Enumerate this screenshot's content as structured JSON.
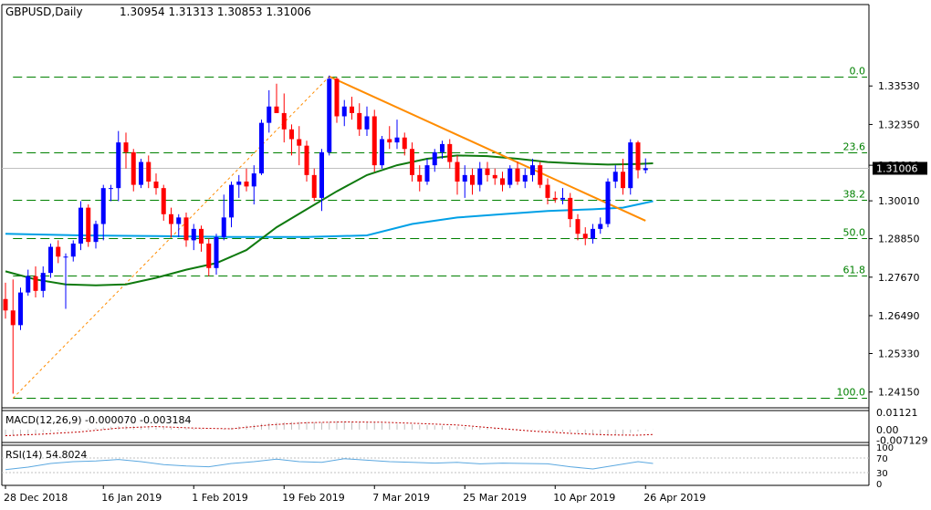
{
  "header": {
    "symbol": "GBPUSD,Daily",
    "ohlc": "1.30954 1.31313 1.30853 1.31006"
  },
  "colors": {
    "bull": "#0000ff",
    "bear": "#ff0000",
    "ema_slow": "#00a0e6",
    "ema_fast": "#0f7a0f",
    "fibo": "#008000",
    "trendline": "#ff8c00",
    "fibo_diagonal": "#ff8c00",
    "macd_signal": "#c00000",
    "rsi": "#5ba8e0",
    "price_box_bg": "#000000",
    "price_box_text": "#ffffff"
  },
  "chart_data": {
    "type": "candlestick",
    "title": "GBPUSD,Daily",
    "ylim": [
      1.23666,
      1.36025
    ],
    "ytick_labels": [
      "1.33530",
      "1.32350",
      "1.31100",
      "1.30010",
      "1.28850",
      "1.27670",
      "1.26490",
      "1.25330",
      "1.24150"
    ],
    "ytick_values": [
      1.3353,
      1.3235,
      1.311,
      1.3001,
      1.2885,
      1.2767,
      1.2649,
      1.2533,
      1.2415
    ],
    "x_labels": [
      {
        "label": "28 Dec 2018",
        "index": 0
      },
      {
        "label": "16 Jan 2019",
        "index": 13
      },
      {
        "label": "1 Feb 2019",
        "index": 25
      },
      {
        "label": "19 Feb 2019",
        "index": 37
      },
      {
        "label": "7 Mar 2019",
        "index": 49
      },
      {
        "label": "25 Mar 2019",
        "index": 61
      },
      {
        "label": "10 Apr 2019",
        "index": 73
      },
      {
        "label": "26 Apr 2019",
        "index": 85
      }
    ],
    "current_price": "1.31006",
    "current_price_value": 1.31006,
    "candles": [
      {
        "o": 1.27,
        "h": 1.275,
        "l": 1.264,
        "c": 1.2665
      },
      {
        "o": 1.2665,
        "h": 1.276,
        "l": 1.241,
        "c": 1.262
      },
      {
        "o": 1.262,
        "h": 1.2735,
        "l": 1.2605,
        "c": 1.272
      },
      {
        "o": 1.272,
        "h": 1.279,
        "l": 1.271,
        "c": 1.277
      },
      {
        "o": 1.277,
        "h": 1.28,
        "l": 1.2705,
        "c": 1.2725
      },
      {
        "o": 1.2725,
        "h": 1.28,
        "l": 1.2705,
        "c": 1.278
      },
      {
        "o": 1.278,
        "h": 1.287,
        "l": 1.2765,
        "c": 1.286
      },
      {
        "o": 1.286,
        "h": 1.288,
        "l": 1.281,
        "c": 1.283
      },
      {
        "o": 1.283,
        "h": 1.284,
        "l": 1.267,
        "c": 1.283
      },
      {
        "o": 1.283,
        "h": 1.288,
        "l": 1.2815,
        "c": 1.287
      },
      {
        "o": 1.287,
        "h": 1.3,
        "l": 1.285,
        "c": 1.298
      },
      {
        "o": 1.298,
        "h": 1.299,
        "l": 1.286,
        "c": 1.2875
      },
      {
        "o": 1.2875,
        "h": 1.294,
        "l": 1.2855,
        "c": 1.293
      },
      {
        "o": 1.293,
        "h": 1.305,
        "l": 1.288,
        "c": 1.304
      },
      {
        "o": 1.304,
        "h": 1.305,
        "l": 1.3,
        "c": 1.304
      },
      {
        "o": 1.304,
        "h": 1.3215,
        "l": 1.3,
        "c": 1.318
      },
      {
        "o": 1.318,
        "h": 1.321,
        "l": 1.31,
        "c": 1.315
      },
      {
        "o": 1.315,
        "h": 1.316,
        "l": 1.303,
        "c": 1.305
      },
      {
        "o": 1.305,
        "h": 1.313,
        "l": 1.304,
        "c": 1.312
      },
      {
        "o": 1.312,
        "h": 1.314,
        "l": 1.304,
        "c": 1.306
      },
      {
        "o": 1.306,
        "h": 1.3085,
        "l": 1.302,
        "c": 1.304
      },
      {
        "o": 1.304,
        "h": 1.305,
        "l": 1.294,
        "c": 1.296
      },
      {
        "o": 1.296,
        "h": 1.298,
        "l": 1.289,
        "c": 1.293
      },
      {
        "o": 1.293,
        "h": 1.296,
        "l": 1.289,
        "c": 1.295
      },
      {
        "o": 1.295,
        "h": 1.2965,
        "l": 1.286,
        "c": 1.288
      },
      {
        "o": 1.288,
        "h": 1.293,
        "l": 1.285,
        "c": 1.2915
      },
      {
        "o": 1.2915,
        "h": 1.2925,
        "l": 1.2845,
        "c": 1.287
      },
      {
        "o": 1.287,
        "h": 1.2885,
        "l": 1.277,
        "c": 1.2795
      },
      {
        "o": 1.2795,
        "h": 1.29,
        "l": 1.2775,
        "c": 1.289
      },
      {
        "o": 1.289,
        "h": 1.302,
        "l": 1.288,
        "c": 1.295
      },
      {
        "o": 1.295,
        "h": 1.306,
        "l": 1.292,
        "c": 1.305
      },
      {
        "o": 1.305,
        "h": 1.308,
        "l": 1.301,
        "c": 1.306
      },
      {
        "o": 1.306,
        "h": 1.31,
        "l": 1.303,
        "c": 1.3045
      },
      {
        "o": 1.3045,
        "h": 1.311,
        "l": 1.299,
        "c": 1.3085
      },
      {
        "o": 1.3085,
        "h": 1.325,
        "l": 1.308,
        "c": 1.324
      },
      {
        "o": 1.324,
        "h": 1.334,
        "l": 1.321,
        "c": 1.329
      },
      {
        "o": 1.329,
        "h": 1.336,
        "l": 1.327,
        "c": 1.327
      },
      {
        "o": 1.327,
        "h": 1.333,
        "l": 1.318,
        "c": 1.322
      },
      {
        "o": 1.322,
        "h": 1.3235,
        "l": 1.314,
        "c": 1.319
      },
      {
        "o": 1.319,
        "h": 1.323,
        "l": 1.311,
        "c": 1.317
      },
      {
        "o": 1.317,
        "h": 1.3185,
        "l": 1.306,
        "c": 1.308
      },
      {
        "o": 1.308,
        "h": 1.31,
        "l": 1.3,
        "c": 1.301
      },
      {
        "o": 1.301,
        "h": 1.316,
        "l": 1.297,
        "c": 1.315
      },
      {
        "o": 1.315,
        "h": 1.3385,
        "l": 1.314,
        "c": 1.3375
      },
      {
        "o": 1.3375,
        "h": 1.338,
        "l": 1.324,
        "c": 1.326
      },
      {
        "o": 1.326,
        "h": 1.331,
        "l": 1.323,
        "c": 1.329
      },
      {
        "o": 1.329,
        "h": 1.332,
        "l": 1.325,
        "c": 1.327
      },
      {
        "o": 1.327,
        "h": 1.33,
        "l": 1.32,
        "c": 1.322
      },
      {
        "o": 1.322,
        "h": 1.329,
        "l": 1.32,
        "c": 1.326
      },
      {
        "o": 1.326,
        "h": 1.328,
        "l": 1.309,
        "c": 1.311
      },
      {
        "o": 1.311,
        "h": 1.32,
        "l": 1.31,
        "c": 1.319
      },
      {
        "o": 1.319,
        "h": 1.323,
        "l": 1.316,
        "c": 1.318
      },
      {
        "o": 1.318,
        "h": 1.325,
        "l": 1.316,
        "c": 1.3195
      },
      {
        "o": 1.3195,
        "h": 1.321,
        "l": 1.314,
        "c": 1.316
      },
      {
        "o": 1.316,
        "h": 1.318,
        "l": 1.306,
        "c": 1.308
      },
      {
        "o": 1.308,
        "h": 1.311,
        "l": 1.303,
        "c": 1.306
      },
      {
        "o": 1.306,
        "h": 1.313,
        "l": 1.305,
        "c": 1.311
      },
      {
        "o": 1.311,
        "h": 1.316,
        "l": 1.309,
        "c": 1.315
      },
      {
        "o": 1.315,
        "h": 1.3185,
        "l": 1.313,
        "c": 1.3175
      },
      {
        "o": 1.3175,
        "h": 1.319,
        "l": 1.31,
        "c": 1.312
      },
      {
        "o": 1.312,
        "h": 1.314,
        "l": 1.302,
        "c": 1.306
      },
      {
        "o": 1.306,
        "h": 1.311,
        "l": 1.301,
        "c": 1.308
      },
      {
        "o": 1.308,
        "h": 1.31,
        "l": 1.302,
        "c": 1.305
      },
      {
        "o": 1.305,
        "h": 1.312,
        "l": 1.303,
        "c": 1.31
      },
      {
        "o": 1.31,
        "h": 1.312,
        "l": 1.306,
        "c": 1.308
      },
      {
        "o": 1.308,
        "h": 1.31,
        "l": 1.305,
        "c": 1.307
      },
      {
        "o": 1.307,
        "h": 1.309,
        "l": 1.303,
        "c": 1.305
      },
      {
        "o": 1.305,
        "h": 1.311,
        "l": 1.304,
        "c": 1.31
      },
      {
        "o": 1.31,
        "h": 1.312,
        "l": 1.305,
        "c": 1.306
      },
      {
        "o": 1.306,
        "h": 1.31,
        "l": 1.304,
        "c": 1.308
      },
      {
        "o": 1.308,
        "h": 1.313,
        "l": 1.306,
        "c": 1.311
      },
      {
        "o": 1.311,
        "h": 1.312,
        "l": 1.304,
        "c": 1.305
      },
      {
        "o": 1.305,
        "h": 1.307,
        "l": 1.299,
        "c": 1.301
      },
      {
        "o": 1.301,
        "h": 1.303,
        "l": 1.2995,
        "c": 1.3005
      },
      {
        "o": 1.3005,
        "h": 1.304,
        "l": 1.299,
        "c": 1.301
      },
      {
        "o": 1.301,
        "h": 1.3025,
        "l": 1.292,
        "c": 1.2945
      },
      {
        "o": 1.2945,
        "h": 1.296,
        "l": 1.288,
        "c": 1.29
      },
      {
        "o": 1.29,
        "h": 1.292,
        "l": 1.2865,
        "c": 1.2885
      },
      {
        "o": 1.2885,
        "h": 1.293,
        "l": 1.287,
        "c": 1.2915
      },
      {
        "o": 1.2915,
        "h": 1.295,
        "l": 1.29,
        "c": 1.293
      },
      {
        "o": 1.293,
        "h": 1.307,
        "l": 1.292,
        "c": 1.306
      },
      {
        "o": 1.306,
        "h": 1.311,
        "l": 1.304,
        "c": 1.309
      },
      {
        "o": 1.309,
        "h": 1.313,
        "l": 1.302,
        "c": 1.304
      },
      {
        "o": 1.304,
        "h": 1.319,
        "l": 1.302,
        "c": 1.318
      },
      {
        "o": 1.318,
        "h": 1.3185,
        "l": 1.307,
        "c": 1.3095
      },
      {
        "o": 1.3095,
        "h": 1.3131,
        "l": 1.3085,
        "c": 1.3101
      }
    ],
    "ema_fast": [
      [
        0,
        1.2785
      ],
      [
        4,
        1.276
      ],
      [
        8,
        1.2745
      ],
      [
        12,
        1.2742
      ],
      [
        16,
        1.2745
      ],
      [
        20,
        1.2765
      ],
      [
        24,
        1.279
      ],
      [
        28,
        1.281
      ],
      [
        32,
        1.285
      ],
      [
        36,
        1.292
      ],
      [
        40,
        1.2975
      ],
      [
        44,
        1.303
      ],
      [
        48,
        1.308
      ],
      [
        52,
        1.311
      ],
      [
        56,
        1.313
      ],
      [
        60,
        1.314
      ],
      [
        64,
        1.3138
      ],
      [
        68,
        1.313
      ],
      [
        72,
        1.312
      ],
      [
        76,
        1.3115
      ],
      [
        80,
        1.3112
      ],
      [
        84,
        1.3114
      ],
      [
        86,
        1.3116
      ]
    ],
    "ema_slow": [
      [
        0,
        1.29
      ],
      [
        10,
        1.2895
      ],
      [
        20,
        1.2893
      ],
      [
        30,
        1.289
      ],
      [
        40,
        1.289
      ],
      [
        48,
        1.2895
      ],
      [
        54,
        1.293
      ],
      [
        60,
        1.295
      ],
      [
        66,
        1.296
      ],
      [
        72,
        1.297
      ],
      [
        78,
        1.2975
      ],
      [
        82,
        1.298
      ],
      [
        86,
        1.3
      ]
    ],
    "fibo_levels": [
      {
        "label": "0.0",
        "value": 1.3382
      },
      {
        "label": "23.6",
        "value": 1.3149
      },
      {
        "label": "38.2",
        "value": 1.3005
      },
      {
        "label": "50.0",
        "value": 1.2888
      },
      {
        "label": "61.8",
        "value": 1.2771
      },
      {
        "label": "100.0",
        "value": 1.2396
      }
    ],
    "fibo_price_low": 1.2396,
    "fibo_price_high": 1.3382,
    "fibo_start_index": 1,
    "fibo_end_index": 43,
    "trendline": {
      "x1": 43,
      "y1": 1.3382,
      "x2": 85,
      "y2": 1.294
    },
    "macd": {
      "label": "MACD(12,26,9) -0.000070 -0.003184",
      "tick_labels": [
        "0.01121",
        "0.00",
        "-0.007129"
      ],
      "ylim": [
        -0.0085,
        0.0125
      ],
      "signal": [
        [
          0,
          -0.004
        ],
        [
          5,
          -0.003
        ],
        [
          10,
          -0.0015
        ],
        [
          15,
          0.001
        ],
        [
          20,
          0.002
        ],
        [
          25,
          0.001
        ],
        [
          30,
          0.0005
        ],
        [
          35,
          0.003
        ],
        [
          40,
          0.0045
        ],
        [
          45,
          0.005
        ],
        [
          50,
          0.0048
        ],
        [
          55,
          0.004
        ],
        [
          60,
          0.003
        ],
        [
          65,
          0.001
        ],
        [
          70,
          -0.001
        ],
        [
          75,
          -0.0025
        ],
        [
          80,
          -0.0035
        ],
        [
          84,
          -0.0037
        ],
        [
          86,
          -0.0032
        ]
      ],
      "hist": [
        -0.0045,
        -0.004,
        -0.0035,
        -0.003,
        -0.0025,
        -0.002,
        -0.0015,
        -0.001,
        -0.0006,
        -0.0003,
        0.0002,
        0.0006,
        0.001,
        0.0015,
        0.0019,
        0.0022,
        0.0025,
        0.0024,
        0.0022,
        0.002,
        0.0018,
        0.0016,
        0.0012,
        0.0009,
        0.0007,
        0.0005,
        0.0003,
        0.0001,
        0.0,
        0.0005,
        0.0012,
        0.002,
        0.0026,
        0.0032,
        0.0038,
        0.0043,
        0.0046,
        0.0048,
        0.0049,
        0.005,
        0.005,
        0.0048,
        0.0047,
        0.005,
        0.0055,
        0.0055,
        0.0053,
        0.005,
        0.0048,
        0.0045,
        0.0043,
        0.004,
        0.0038,
        0.0036,
        0.0034,
        0.0031,
        0.0029,
        0.0027,
        0.0025,
        0.0023,
        0.002,
        0.0018,
        0.0016,
        0.0014,
        0.0012,
        0.001,
        0.0008,
        0.0005,
        0.0003,
        0.0,
        -0.0003,
        -0.0006,
        -0.0009,
        -0.0012,
        -0.0015,
        -0.0018,
        -0.0022,
        -0.0026,
        -0.003,
        -0.0034,
        -0.0036,
        -0.0035,
        -0.003,
        -0.0022,
        -0.0012,
        -0.0005,
        -0.0001
      ]
    },
    "rsi": {
      "label": "RSI(14) 54.8024",
      "tick_labels": [
        "100",
        "70",
        "30",
        "0"
      ],
      "values": [
        [
          0,
          38
        ],
        [
          3,
          45
        ],
        [
          6,
          55
        ],
        [
          9,
          60
        ],
        [
          12,
          62
        ],
        [
          15,
          66
        ],
        [
          18,
          60
        ],
        [
          21,
          52
        ],
        [
          24,
          48
        ],
        [
          27,
          46
        ],
        [
          30,
          55
        ],
        [
          33,
          60
        ],
        [
          36,
          67
        ],
        [
          39,
          60
        ],
        [
          42,
          58
        ],
        [
          45,
          68
        ],
        [
          48,
          64
        ],
        [
          51,
          60
        ],
        [
          54,
          58
        ],
        [
          57,
          56
        ],
        [
          60,
          58
        ],
        [
          63,
          54
        ],
        [
          66,
          56
        ],
        [
          69,
          55
        ],
        [
          72,
          54
        ],
        [
          75,
          46
        ],
        [
          78,
          40
        ],
        [
          81,
          50
        ],
        [
          84,
          60
        ],
        [
          86,
          55
        ]
      ]
    }
  }
}
